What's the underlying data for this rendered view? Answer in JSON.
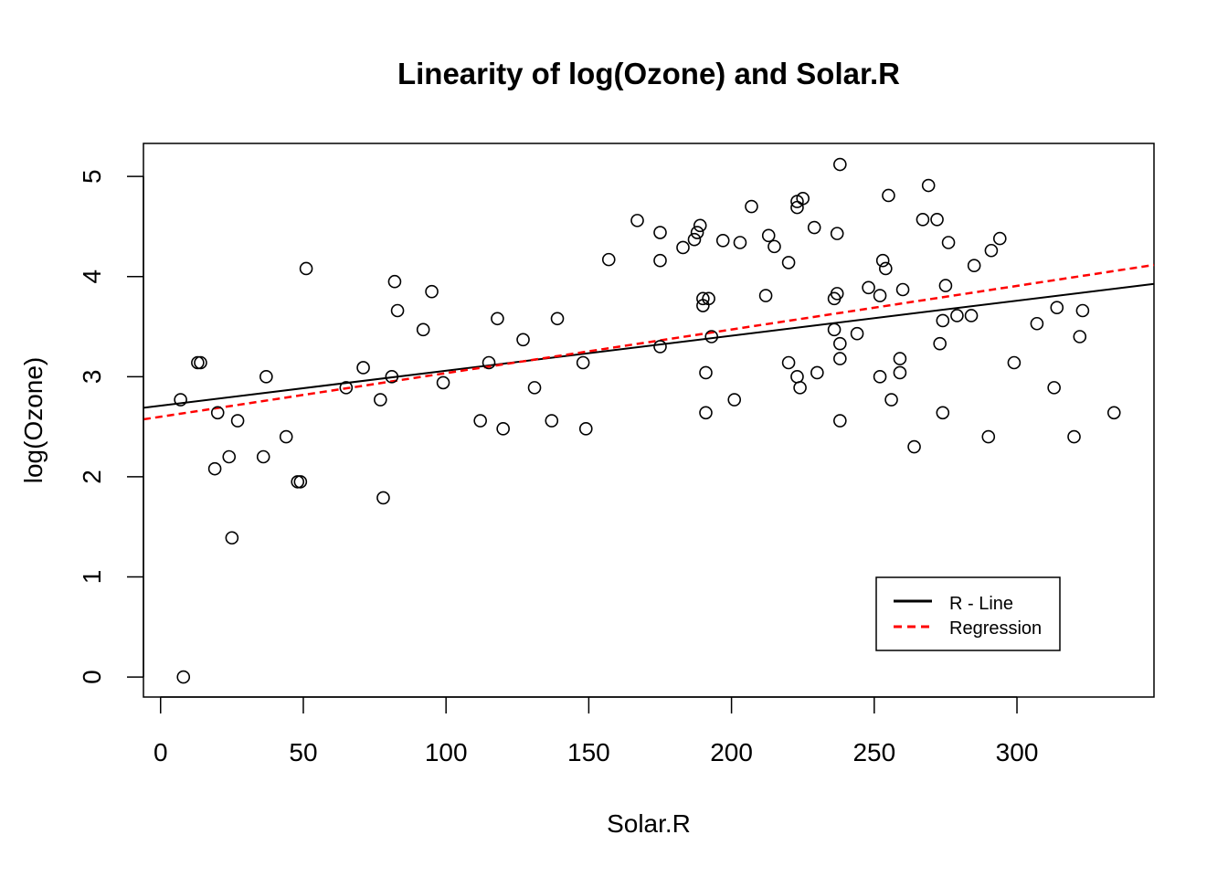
{
  "chart_data": {
    "type": "scatter",
    "title": "Linearity of log(Ozone) and Solar.R",
    "xlabel": "Solar.R",
    "ylabel": "log(Ozone)",
    "xlim": [
      -6,
      348
    ],
    "ylim": [
      -0.2,
      5.33
    ],
    "xticks": [
      "0",
      "50",
      "100",
      "150",
      "200",
      "250",
      "300"
    ],
    "yticks": [
      "0",
      "1",
      "2",
      "3",
      "4",
      "5"
    ],
    "grid": false,
    "legend_position": "bottom-right",
    "points": [
      [
        7,
        2.77
      ],
      [
        8,
        0.0
      ],
      [
        13,
        3.14
      ],
      [
        14,
        3.14
      ],
      [
        19,
        2.08
      ],
      [
        20,
        2.64
      ],
      [
        24,
        2.2
      ],
      [
        25,
        1.39
      ],
      [
        27,
        2.56
      ],
      [
        36,
        2.2
      ],
      [
        37,
        3.0
      ],
      [
        44,
        2.4
      ],
      [
        48,
        1.95
      ],
      [
        49,
        1.95
      ],
      [
        51,
        4.08
      ],
      [
        65,
        2.89
      ],
      [
        71,
        3.09
      ],
      [
        77,
        2.77
      ],
      [
        78,
        1.79
      ],
      [
        81,
        3.0
      ],
      [
        82,
        3.95
      ],
      [
        83,
        3.66
      ],
      [
        92,
        3.47
      ],
      [
        95,
        3.85
      ],
      [
        99,
        2.94
      ],
      [
        112,
        2.56
      ],
      [
        115,
        3.14
      ],
      [
        118,
        3.58
      ],
      [
        120,
        2.48
      ],
      [
        127,
        3.37
      ],
      [
        131,
        2.89
      ],
      [
        137,
        2.56
      ],
      [
        139,
        3.58
      ],
      [
        148,
        3.14
      ],
      [
        149,
        2.48
      ],
      [
        157,
        4.17
      ],
      [
        167,
        4.56
      ],
      [
        175,
        4.44
      ],
      [
        175,
        4.16
      ],
      [
        175,
        3.3
      ],
      [
        183,
        4.29
      ],
      [
        187,
        4.37
      ],
      [
        188,
        4.44
      ],
      [
        189,
        4.51
      ],
      [
        190,
        3.78
      ],
      [
        190,
        3.71
      ],
      [
        191,
        3.04
      ],
      [
        191,
        2.64
      ],
      [
        192,
        3.78
      ],
      [
        193,
        3.4
      ],
      [
        197,
        4.36
      ],
      [
        201,
        2.77
      ],
      [
        203,
        4.34
      ],
      [
        207,
        4.7
      ],
      [
        212,
        3.81
      ],
      [
        213,
        4.41
      ],
      [
        215,
        4.3
      ],
      [
        220,
        4.14
      ],
      [
        220,
        3.14
      ],
      [
        223,
        4.75
      ],
      [
        223,
        4.69
      ],
      [
        223,
        3.0
      ],
      [
        224,
        2.89
      ],
      [
        225,
        4.78
      ],
      [
        229,
        4.49
      ],
      [
        230,
        3.04
      ],
      [
        236,
        3.78
      ],
      [
        236,
        3.47
      ],
      [
        237,
        4.43
      ],
      [
        237,
        3.83
      ],
      [
        238,
        5.12
      ],
      [
        238,
        3.33
      ],
      [
        238,
        3.18
      ],
      [
        238,
        2.56
      ],
      [
        244,
        3.43
      ],
      [
        248,
        3.89
      ],
      [
        252,
        3.81
      ],
      [
        252,
        3.0
      ],
      [
        253,
        4.16
      ],
      [
        254,
        4.08
      ],
      [
        255,
        4.81
      ],
      [
        256,
        2.77
      ],
      [
        259,
        3.18
      ],
      [
        259,
        3.04
      ],
      [
        260,
        3.87
      ],
      [
        264,
        2.3
      ],
      [
        267,
        4.57
      ],
      [
        269,
        4.91
      ],
      [
        272,
        4.57
      ],
      [
        273,
        3.33
      ],
      [
        274,
        3.56
      ],
      [
        274,
        2.64
      ],
      [
        275,
        3.91
      ],
      [
        276,
        4.34
      ],
      [
        279,
        3.61
      ],
      [
        284,
        3.61
      ],
      [
        285,
        4.11
      ],
      [
        290,
        2.4
      ],
      [
        291,
        4.26
      ],
      [
        294,
        4.38
      ],
      [
        299,
        3.14
      ],
      [
        307,
        3.53
      ],
      [
        313,
        2.89
      ],
      [
        314,
        3.69
      ],
      [
        320,
        2.4
      ],
      [
        322,
        3.4
      ],
      [
        323,
        3.66
      ],
      [
        334,
        2.64
      ]
    ],
    "series": [
      {
        "name": "R - Line",
        "color": "#000000",
        "style": "solid",
        "intercept": 2.71,
        "slope": 0.003497
      },
      {
        "name": "Regression",
        "color": "#ff0000",
        "style": "dashed",
        "intercept": 2.6,
        "slope": 0.004357
      }
    ]
  }
}
